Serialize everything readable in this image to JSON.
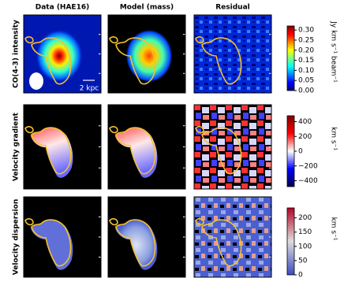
{
  "columns": [
    "Data (HAE16)",
    "Model (mass)",
    "Residual"
  ],
  "scale_bar": "2 kpc",
  "rows": [
    {
      "label": "CO(4-3) intensity",
      "colorbar": {
        "label": "Jy km s⁻¹ beam⁻¹",
        "lim": [
          0,
          0.32
        ],
        "ticks": [
          {
            "value": 0,
            "label": "0.00"
          },
          {
            "value": 0.05,
            "label": "0.05"
          },
          {
            "value": 0.1,
            "label": "0.10"
          },
          {
            "value": 0.15,
            "label": "0.15"
          },
          {
            "value": 0.2,
            "label": "0.20"
          },
          {
            "value": 0.25,
            "label": "0.25"
          },
          {
            "value": 0.3,
            "label": "0.30"
          }
        ]
      }
    },
    {
      "label": "Velocity gradient",
      "colorbar": {
        "label": "km s⁻¹",
        "lim": [
          -480,
          480
        ],
        "ticks": [
          {
            "value": -400,
            "label": "−400"
          },
          {
            "value": -200,
            "label": "−200"
          },
          0,
          200,
          400
        ]
      }
    },
    {
      "label": "Velocity dispersion",
      "colorbar": {
        "label": "km s⁻¹",
        "lim": [
          0,
          235
        ],
        "ticks": [
          0,
          50,
          100,
          150,
          200
        ]
      }
    }
  ]
}
